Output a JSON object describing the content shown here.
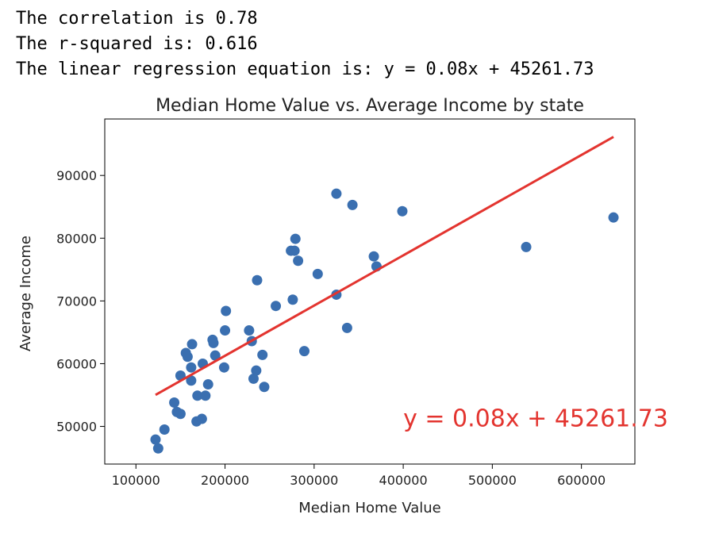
{
  "output_lines": [
    "The correlation is 0.78",
    "The r-squared is: 0.616",
    "The linear regression equation is: y = 0.08x + 45261.73"
  ],
  "chart_data": {
    "type": "scatter",
    "title": "Median Home Value vs. Average Income by state",
    "xlabel": "Median Home Value",
    "ylabel": "Average Income",
    "xlim": [
      65000,
      660000
    ],
    "ylim": [
      44000,
      99000
    ],
    "xticks": [
      100000,
      200000,
      300000,
      400000,
      500000,
      600000
    ],
    "yticks": [
      50000,
      60000,
      70000,
      80000,
      90000
    ],
    "grid": false,
    "point_color": "#3a6fb0",
    "line_color": "#e3342f",
    "annotation": {
      "text": "y = 0.08x + 45261.73",
      "x": 400000,
      "y": 50000
    },
    "regression": {
      "slope": 0.08,
      "intercept": 45261.73,
      "x_range": [
        122000,
        636000
      ]
    },
    "series": [
      {
        "points": [
          [
            122000,
            47900
          ],
          [
            125000,
            46500
          ],
          [
            132000,
            49500
          ],
          [
            143000,
            53800
          ],
          [
            146000,
            52300
          ],
          [
            150000,
            52000
          ],
          [
            150000,
            58100
          ],
          [
            156000,
            61700
          ],
          [
            158000,
            61100
          ],
          [
            162000,
            59400
          ],
          [
            162000,
            57300
          ],
          [
            163000,
            63100
          ],
          [
            168000,
            50800
          ],
          [
            169000,
            54900
          ],
          [
            174000,
            51200
          ],
          [
            175000,
            60000
          ],
          [
            178000,
            54900
          ],
          [
            181000,
            56700
          ],
          [
            186000,
            63800
          ],
          [
            187000,
            63300
          ],
          [
            189000,
            61300
          ],
          [
            199000,
            59400
          ],
          [
            200000,
            65300
          ],
          [
            201000,
            68400
          ],
          [
            227000,
            65300
          ],
          [
            230000,
            63600
          ],
          [
            232000,
            57600
          ],
          [
            235000,
            58900
          ],
          [
            236000,
            73300
          ],
          [
            242000,
            61400
          ],
          [
            244000,
            56300
          ],
          [
            257000,
            69200
          ],
          [
            274000,
            78000
          ],
          [
            276000,
            70200
          ],
          [
            278000,
            78000
          ],
          [
            279000,
            79900
          ],
          [
            282000,
            76400
          ],
          [
            289000,
            62000
          ],
          [
            304000,
            74300
          ],
          [
            325000,
            87100
          ],
          [
            325000,
            71000
          ],
          [
            337000,
            65700
          ],
          [
            343000,
            85300
          ],
          [
            367000,
            77100
          ],
          [
            370000,
            75500
          ],
          [
            399000,
            84300
          ],
          [
            538000,
            78600
          ],
          [
            636000,
            83300
          ]
        ]
      }
    ]
  }
}
